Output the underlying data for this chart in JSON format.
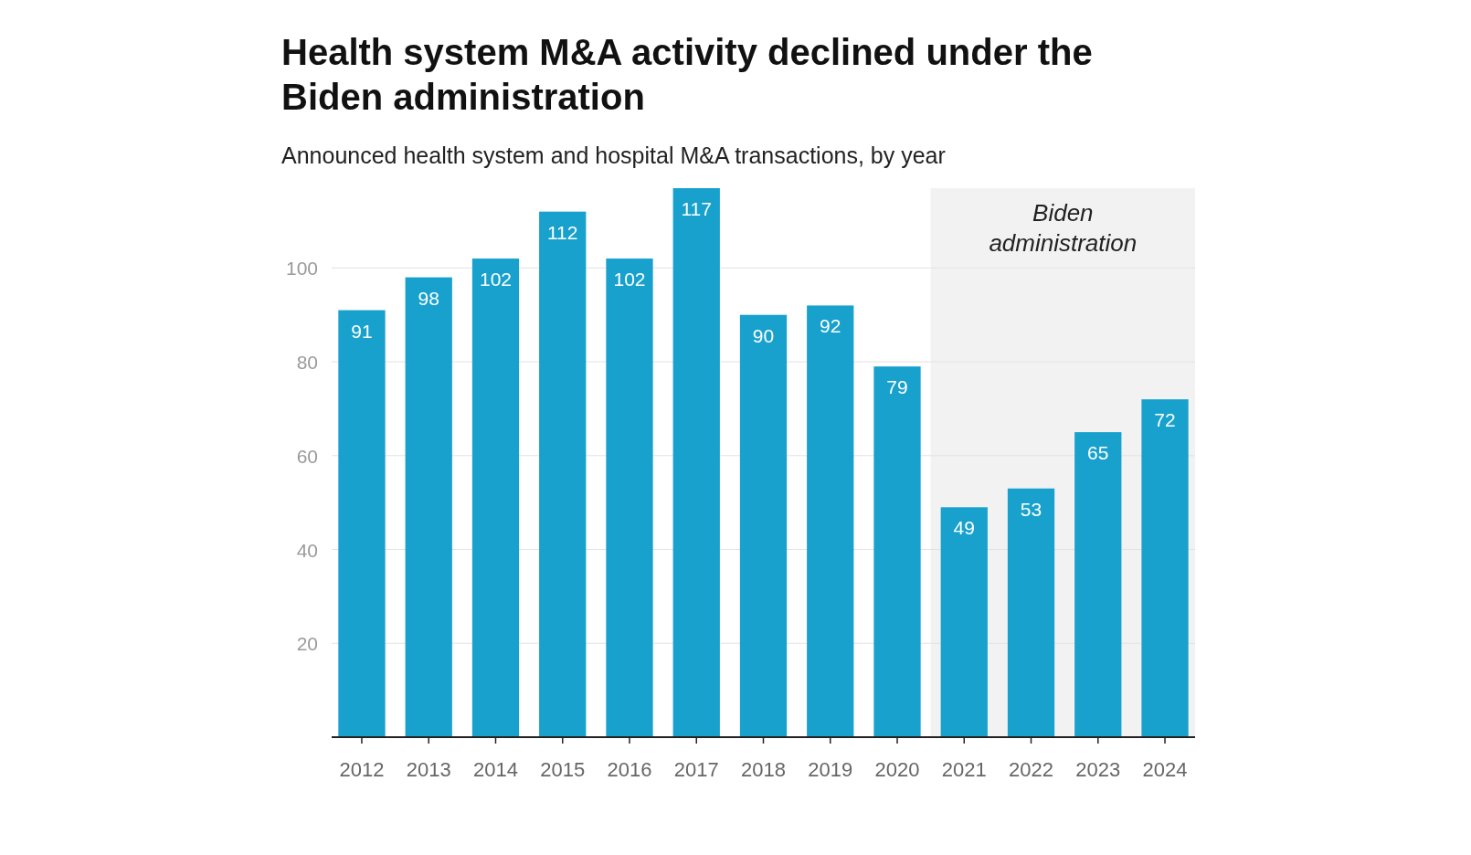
{
  "chart_data": {
    "type": "bar",
    "title": "Health system M&A activity declined under the Biden administration",
    "subtitle": "Announced health system and hospital M&A transactions, by year",
    "categories": [
      "2012",
      "2013",
      "2014",
      "2015",
      "2016",
      "2017",
      "2018",
      "2019",
      "2020",
      "2021",
      "2022",
      "2023",
      "2024"
    ],
    "values": [
      91,
      98,
      102,
      112,
      102,
      117,
      90,
      92,
      79,
      49,
      53,
      65,
      72
    ],
    "color": "#18a1cd",
    "ylim": [
      0,
      117
    ],
    "yticks": [
      20,
      40,
      60,
      80,
      100
    ],
    "grid": "y",
    "data_labels": true,
    "bands": [
      {
        "axis": "x",
        "from": "2021",
        "to": "2024",
        "label": "Biden administration",
        "color": "#f2f2f2"
      }
    ]
  }
}
